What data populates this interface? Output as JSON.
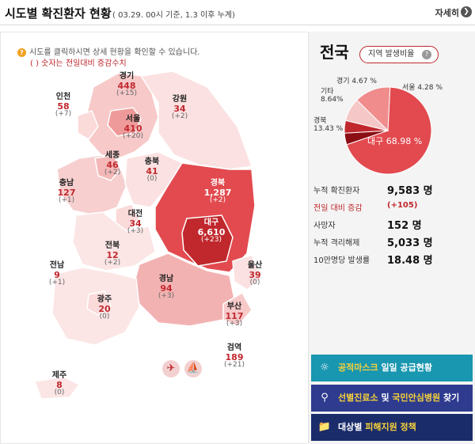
{
  "header": {
    "title": "시도별 확진환자 현황",
    "subtitle": "( 03.29. 00시 기준, 1.3 이후 누계)",
    "detail_label": "자세히",
    "detail_icon": "chevron-right-icon"
  },
  "map_info": {
    "hint": "시도를 클릭하시면 상세 현황을 확인할 수 있습니다.",
    "note": "( ) 숫자는 전일대비 증감수치",
    "hint_icon": "question-icon"
  },
  "regions": {
    "incheon": {
      "name": "인천",
      "count": "58",
      "delta": "(+7)"
    },
    "gyeonggi": {
      "name": "경기",
      "count": "448",
      "delta": "(+15)"
    },
    "gangwon": {
      "name": "강원",
      "count": "34",
      "delta": "(+2)"
    },
    "seoul": {
      "name": "서울",
      "count": "410",
      "delta": "(+20)"
    },
    "sejong": {
      "name": "세종",
      "count": "46",
      "delta": "(+2)"
    },
    "chungbuk": {
      "name": "충북",
      "count": "41",
      "delta": "(0)"
    },
    "chungnam": {
      "name": "충남",
      "count": "127",
      "delta": "(+1)"
    },
    "gyeongbuk": {
      "name": "경북",
      "count": "1,287",
      "delta": "(+2)"
    },
    "daejeon": {
      "name": "대전",
      "count": "34",
      "delta": "(+3)"
    },
    "daegu": {
      "name": "대구",
      "count": "6,610",
      "delta": "(+23)"
    },
    "jeonbuk": {
      "name": "전북",
      "count": "12",
      "delta": "(+2)"
    },
    "jeonnam": {
      "name": "전남",
      "count": "9",
      "delta": "(+1)"
    },
    "ulsan": {
      "name": "울산",
      "count": "39",
      "delta": "(0)"
    },
    "gyeongnam": {
      "name": "경남",
      "count": "94",
      "delta": "(+3)"
    },
    "gwangju": {
      "name": "광주",
      "count": "20",
      "delta": "(0)"
    },
    "busan": {
      "name": "부산",
      "count": "117",
      "delta": "(+3)"
    },
    "quarantine": {
      "name": "검역",
      "count": "189",
      "delta": "(+21)"
    },
    "jeju": {
      "name": "제주",
      "count": "8",
      "delta": "(0)"
    }
  },
  "travel_icons": [
    "airplane-icon",
    "ship-icon",
    "luggage-icon"
  ],
  "national": {
    "title": "전국",
    "ratio_button": "지역 발생비율",
    "ratio_icon": "question-icon"
  },
  "chart_data": {
    "type": "pie",
    "slices": [
      {
        "label": "대구",
        "value": 68.98,
        "text": "대구 68.98 %",
        "color": "#e24a4f"
      },
      {
        "label": "서울",
        "value": 4.28,
        "text": "서울 4.28 %",
        "color": "#8b0e14"
      },
      {
        "label": "경기",
        "value": 4.67,
        "text": "경기 4.67 %",
        "color": "#c0282d"
      },
      {
        "label": "기타",
        "value": 8.64,
        "text": "기타 8.64%",
        "color": "#f6c7c7"
      },
      {
        "label": "경북",
        "value": 13.43,
        "text": "경북 13.43 %",
        "color": "#f08c8c"
      }
    ]
  },
  "stats": {
    "cumulative_label": "누적 확진환자",
    "cumulative_value": "9,583 명",
    "daily_label": "전일 대비 증감",
    "daily_value": "(+105)",
    "deaths_label": "사망자",
    "deaths_value": "152 명",
    "released_label": "누적 격리해제",
    "released_value": "5,033 명",
    "rate_label": "10만명당 발생률",
    "rate_value": "18.48 명"
  },
  "buttons": {
    "mask": {
      "highlight": "공적마스크",
      "rest": " 일일 공급현황",
      "icon": "mask-icon"
    },
    "clinic": {
      "highlight1": "선별진료소",
      "mid": " 및 ",
      "highlight2": "국민안심병원",
      "rest": " 찾기",
      "icon": "map-pin-icon"
    },
    "support": {
      "pre": "대상별 ",
      "highlight": "피해지원 정책",
      "icon": "folder-icon"
    }
  }
}
